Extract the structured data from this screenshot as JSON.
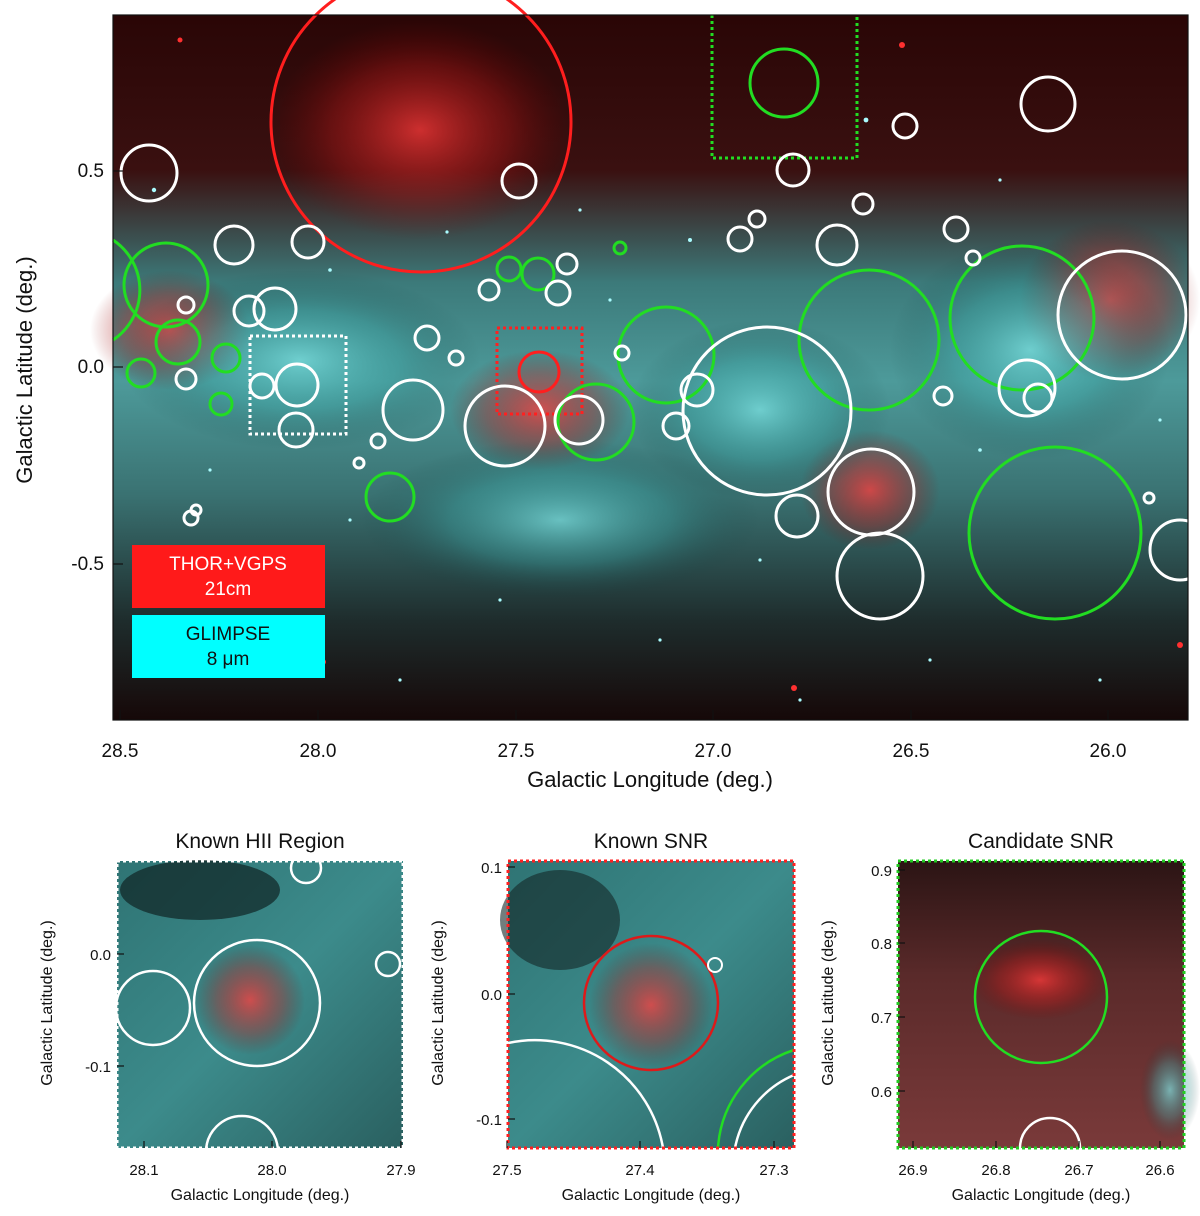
{
  "main": {
    "xlabel": "Galactic Longitude (deg.)",
    "ylabel": "Galactic Latitude (deg.)",
    "x_ticks": [
      "28.5",
      "28.0",
      "27.5",
      "27.0",
      "26.5",
      "26.0"
    ],
    "y_ticks": [
      "0.5",
      "0.0",
      "-0.5"
    ],
    "legend": {
      "red_line1": "THOR+VGPS",
      "red_line2": "21cm",
      "cyan_line1": "GLIMPSE",
      "cyan_line2": "8 μm",
      "red_color": "#ff1a1a",
      "cyan_color": "#00ffff"
    }
  },
  "panels": [
    {
      "title": "Known HII Region",
      "xlabel": "Galactic Longitude (deg.)",
      "ylabel": "Galactic Latitude (deg.)",
      "x_ticks": [
        "28.1",
        "28.0",
        "27.9"
      ],
      "y_ticks": [
        "0.0",
        "-0.1"
      ],
      "frame_color": "#ffffff"
    },
    {
      "title": "Known SNR",
      "xlabel": "Galactic Longitude (deg.)",
      "ylabel": "Galactic Latitude (deg.)",
      "x_ticks": [
        "27.5",
        "27.4",
        "27.3"
      ],
      "y_ticks": [
        "0.1",
        "0.0",
        "-0.1"
      ],
      "frame_color": "#ff2020"
    },
    {
      "title": "Candidate SNR",
      "xlabel": "Galactic Longitude (deg.)",
      "ylabel": "Galactic Latitude (deg.)",
      "x_ticks": [
        "26.9",
        "26.8",
        "26.7",
        "26.6"
      ],
      "y_ticks": [
        "0.9",
        "0.8",
        "0.7",
        "0.6"
      ],
      "frame_color": "#22cc22"
    }
  ]
}
